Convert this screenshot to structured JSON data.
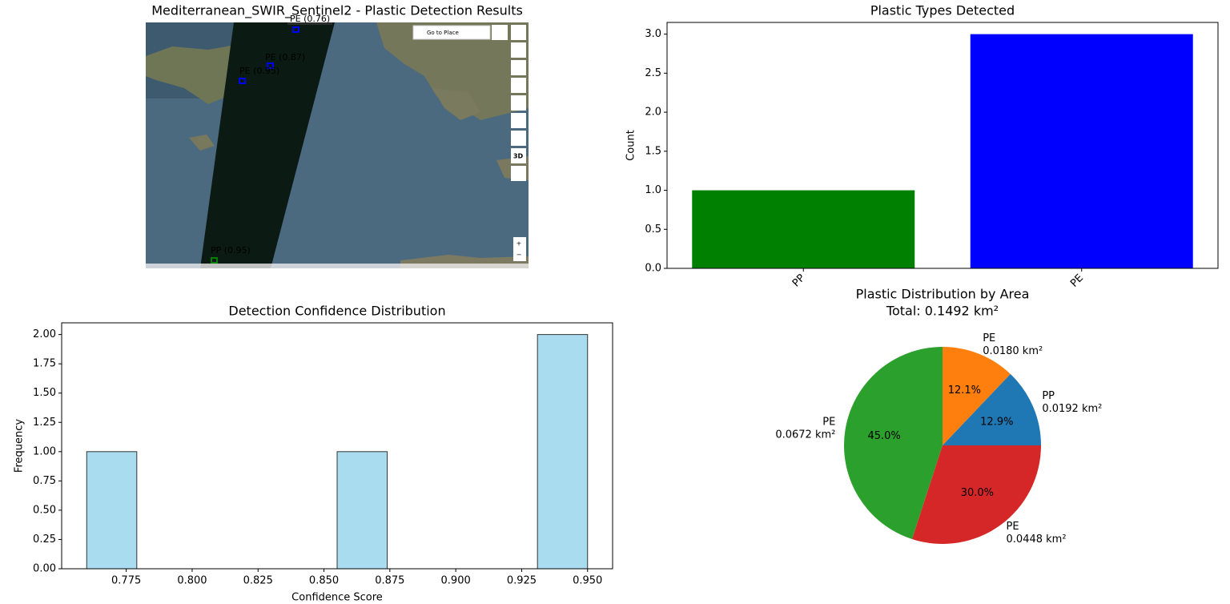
{
  "chart_data": [
    {
      "type": "image",
      "title": "Mediterranean_SWIR_Sentinel2 - Plastic Detection Results",
      "annotations": [
        {
          "label": "PE (0.76)",
          "color": "#0000ff"
        },
        {
          "label": "PE (0.87)",
          "color": "#0000ff"
        },
        {
          "label": "PE (0.95)",
          "color": "#0000ff"
        },
        {
          "label": "PP (0.95)",
          "color": "#008000"
        }
      ],
      "controls": [
        "Go to Place",
        "3D",
        "+",
        "−"
      ]
    },
    {
      "type": "bar",
      "title": "Plastic Types Detected",
      "ylabel": "Count",
      "categories": [
        "PP",
        "PE"
      ],
      "values": [
        1,
        3
      ],
      "colors": [
        "#008000",
        "#0000ff"
      ],
      "ylim": [
        0,
        3.15
      ],
      "yticks": [
        {
          "value": 0,
          "label": "0.0"
        },
        0.5,
        {
          "value": 1,
          "label": "1.0"
        },
        1.5,
        {
          "value": 2,
          "label": "2.0"
        },
        2.5,
        {
          "value": 3,
          "label": "3.0"
        }
      ]
    },
    {
      "type": "histogram",
      "title": "Detection Confidence Distribution",
      "xlabel": "Confidence Score",
      "ylabel": "Frequency",
      "bins": [
        0.76,
        0.779,
        0.798,
        0.817,
        0.836,
        0.855,
        0.874,
        0.893,
        0.912,
        0.931,
        0.95
      ],
      "values": [
        1,
        0,
        0,
        0,
        0,
        1,
        0,
        0,
        0,
        2
      ],
      "color": "#aadcf0",
      "edgecolor": "#333333",
      "xlim": [
        0.7505,
        0.9595
      ],
      "xticks": [
        0.775,
        {
          "value": 0.8,
          "label": "0.800"
        },
        0.825,
        {
          "value": 0.85,
          "label": "0.850"
        },
        0.875,
        {
          "value": 0.9,
          "label": "0.900"
        },
        0.925,
        {
          "value": 0.95,
          "label": "0.950"
        }
      ],
      "ylim": [
        0,
        2.1
      ],
      "yticks": [
        {
          "value": 0,
          "label": "0.00"
        },
        0.25,
        {
          "value": 0.5,
          "label": "0.50"
        },
        0.75,
        {
          "value": 1,
          "label": "1.00"
        },
        1.25,
        {
          "value": 1.5,
          "label": "1.50"
        },
        1.75,
        {
          "value": 2,
          "label": "2.00"
        }
      ]
    },
    {
      "type": "pie",
      "title": "Plastic Distribution by Area",
      "subtitle": "Total: 0.1492 km²",
      "categories": [
        "PP",
        "PE",
        "PE",
        "PE"
      ],
      "area_labels": [
        "0.0192 km²",
        "0.0180 km²",
        "0.0672 km²",
        "0.0448 km²"
      ],
      "values": [
        12.9,
        12.1,
        45.0,
        30.0
      ],
      "value_labels": [
        "12.9%",
        "12.1%",
        "45.0%",
        "30.0%"
      ],
      "colors": [
        "#1f77b4",
        "#ff7f0e",
        "#2ca02c",
        "#d62728"
      ]
    }
  ]
}
